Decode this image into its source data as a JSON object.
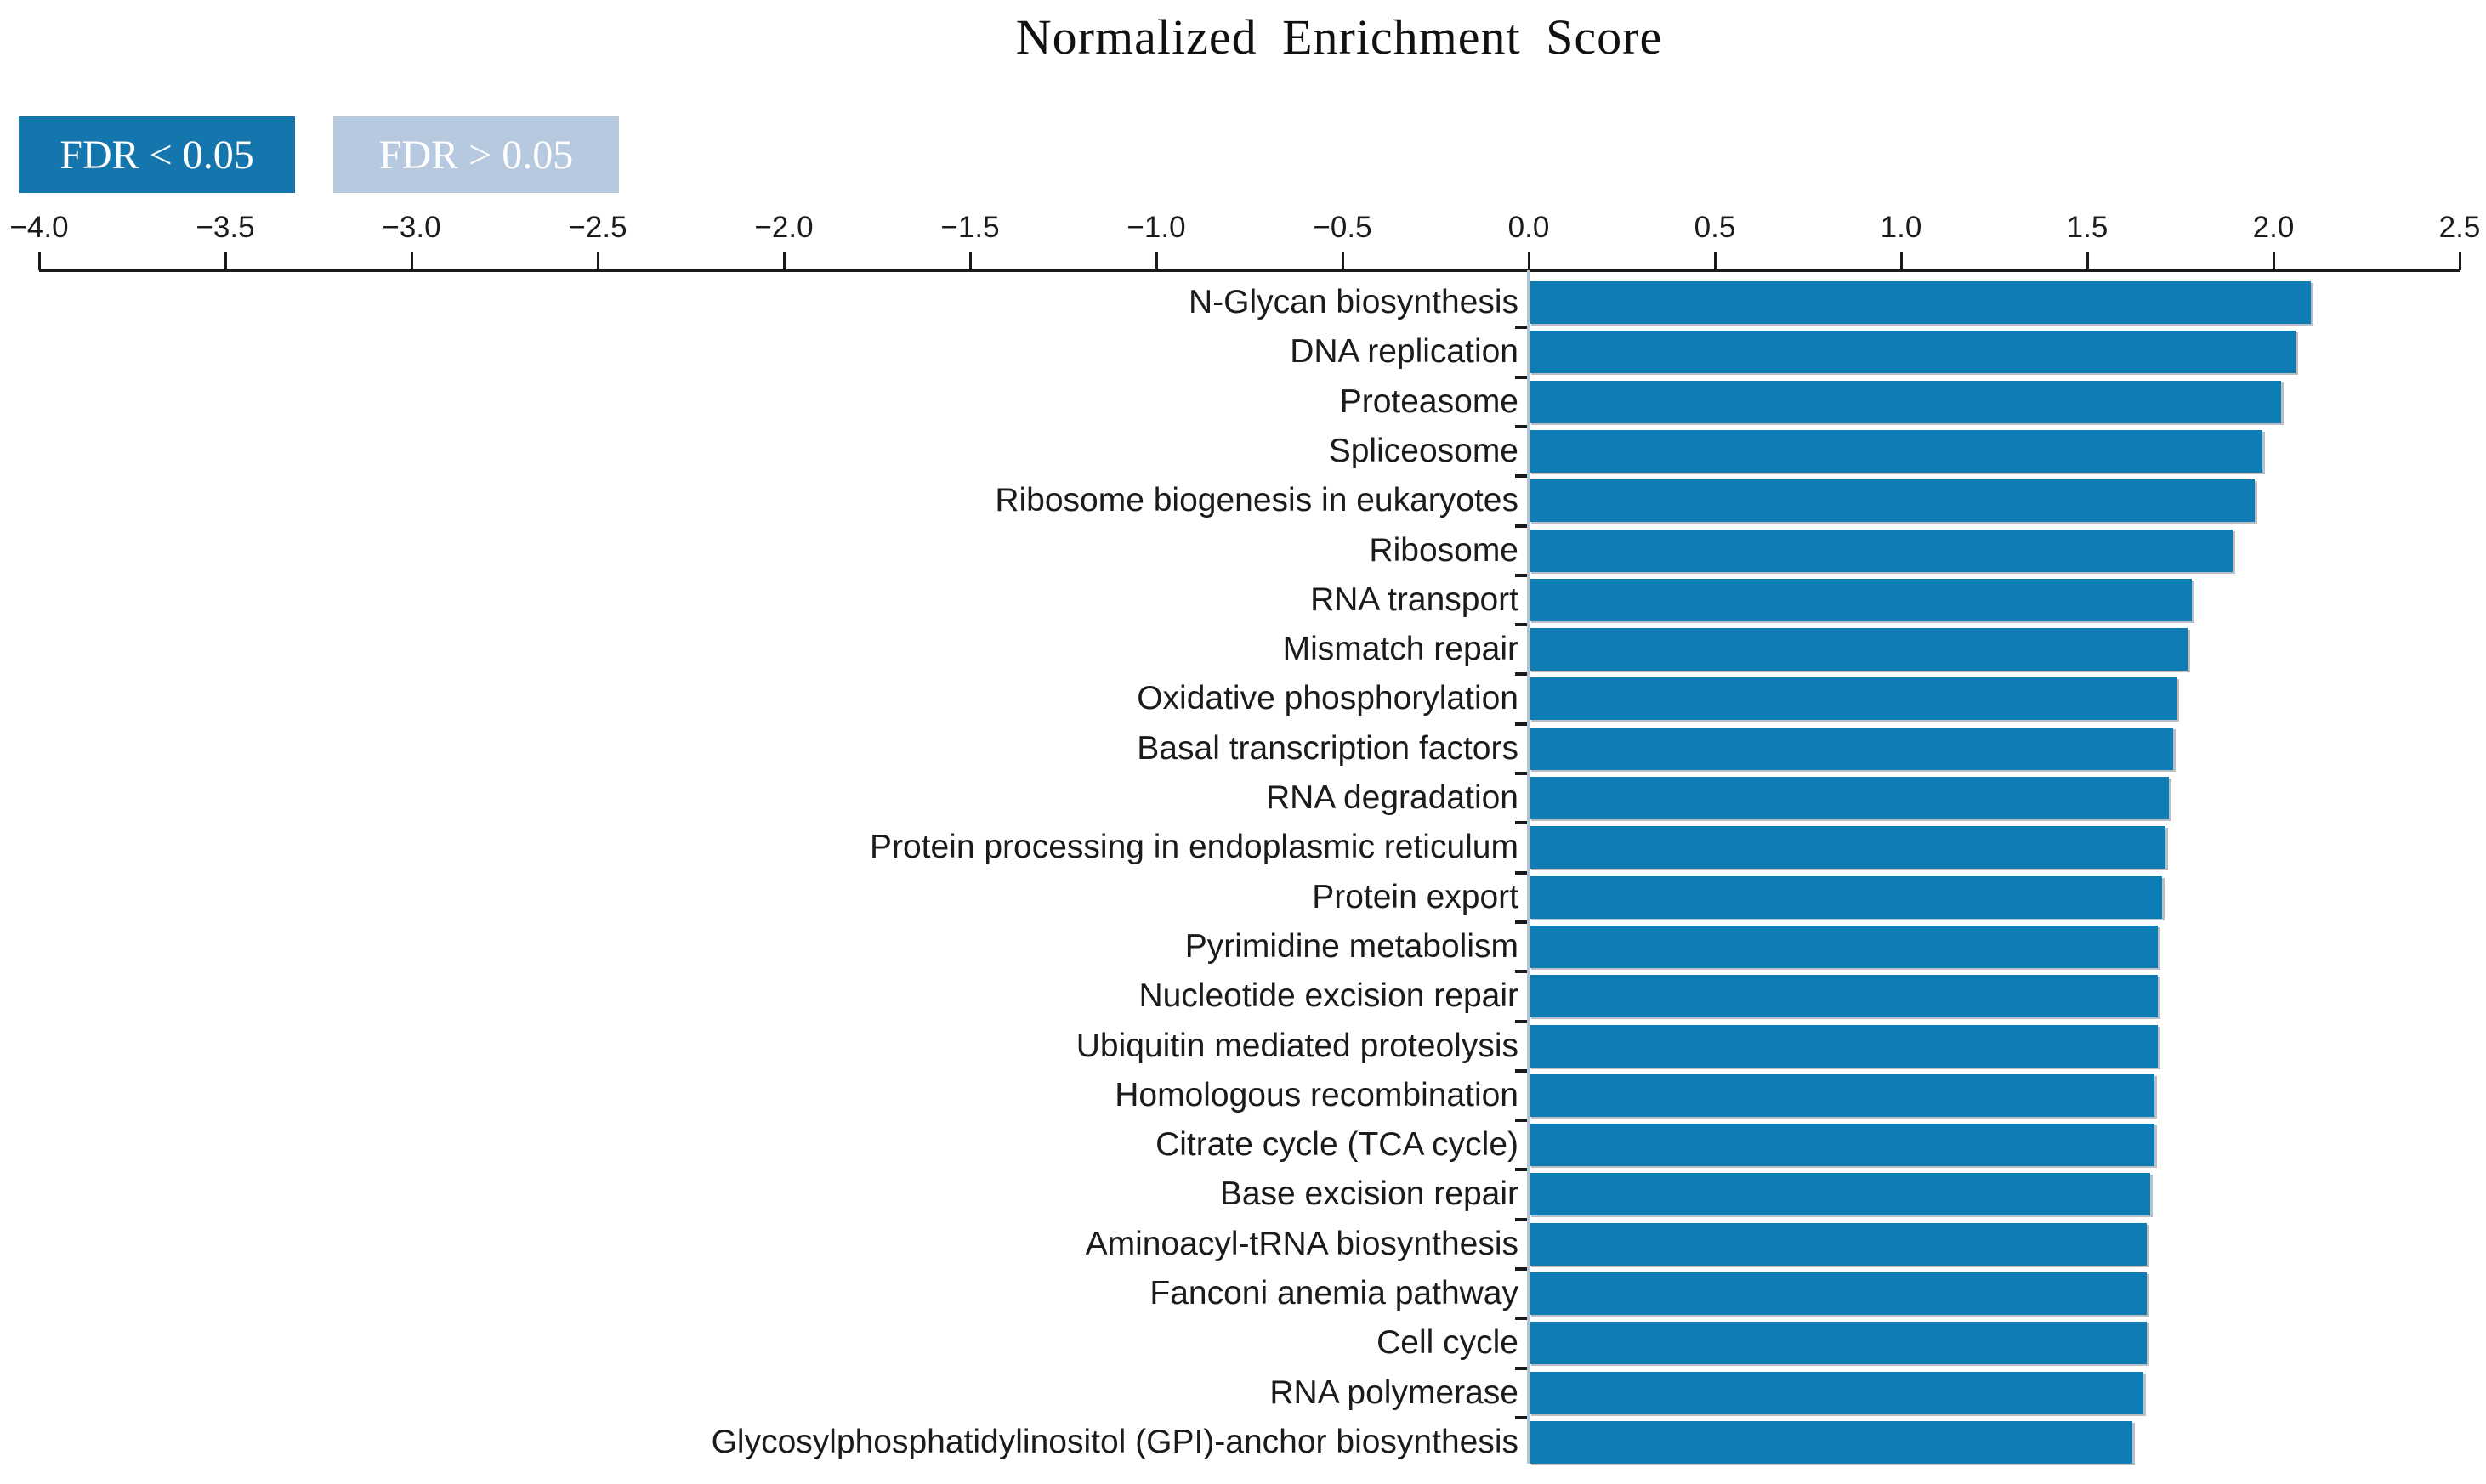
{
  "title": "Normalized Enrichment Score",
  "legend": {
    "items": [
      {
        "label": "FDR < 0.05",
        "color": "#1476ac",
        "text_color": "#ffffff"
      },
      {
        "label": "FDR > 0.05",
        "color": "#b6c9df",
        "text_color": "#ffffff"
      }
    ]
  },
  "x_axis": {
    "min": -4.0,
    "max": 2.5,
    "step": 0.5,
    "tick_labels": [
      "−4.0",
      "−3.5",
      "−3.0",
      "−2.5",
      "−2.0",
      "−1.5",
      "−1.0",
      "−0.5",
      "0.0",
      "0.5",
      "1.0",
      "1.5",
      "2.0",
      "2.5"
    ]
  },
  "chart_data": {
    "type": "bar",
    "orientation": "horizontal",
    "title": "Normalized Enrichment Score",
    "xlabel": "Normalized Enrichment Score",
    "xlim": [
      -4.0,
      2.5
    ],
    "grid": false,
    "legend_position": "top-left",
    "legend_entries": [
      "FDR < 0.05",
      "FDR > 0.05"
    ],
    "bar_color_significant": "#0e7db5",
    "bar_color_nonsignificant": "#b6c9df",
    "all_bars_group": "FDR < 0.05",
    "categories": [
      "N-Glycan biosynthesis",
      "DNA replication",
      "Proteasome",
      "Spliceosome",
      "Ribosome biogenesis in eukaryotes",
      "Ribosome",
      "RNA transport",
      "Mismatch repair",
      "Oxidative phosphorylation",
      "Basal transcription factors",
      "RNA degradation",
      "Protein processing in endoplasmic reticulum",
      "Protein export",
      "Pyrimidine metabolism",
      "Nucleotide excision repair",
      "Ubiquitin mediated proteolysis",
      "Homologous recombination",
      "Citrate cycle (TCA cycle)",
      "Base excision repair",
      "Aminoacyl-tRNA biosynthesis",
      "Fanconi anemia pathway",
      "Cell cycle",
      "RNA polymerase",
      "Glycosylphosphatidylinositol (GPI)-anchor biosynthesis"
    ],
    "values": [
      2.1,
      2.06,
      2.02,
      1.97,
      1.95,
      1.89,
      1.78,
      1.77,
      1.74,
      1.73,
      1.72,
      1.71,
      1.7,
      1.69,
      1.69,
      1.69,
      1.68,
      1.68,
      1.67,
      1.66,
      1.66,
      1.66,
      1.65,
      1.62
    ]
  }
}
